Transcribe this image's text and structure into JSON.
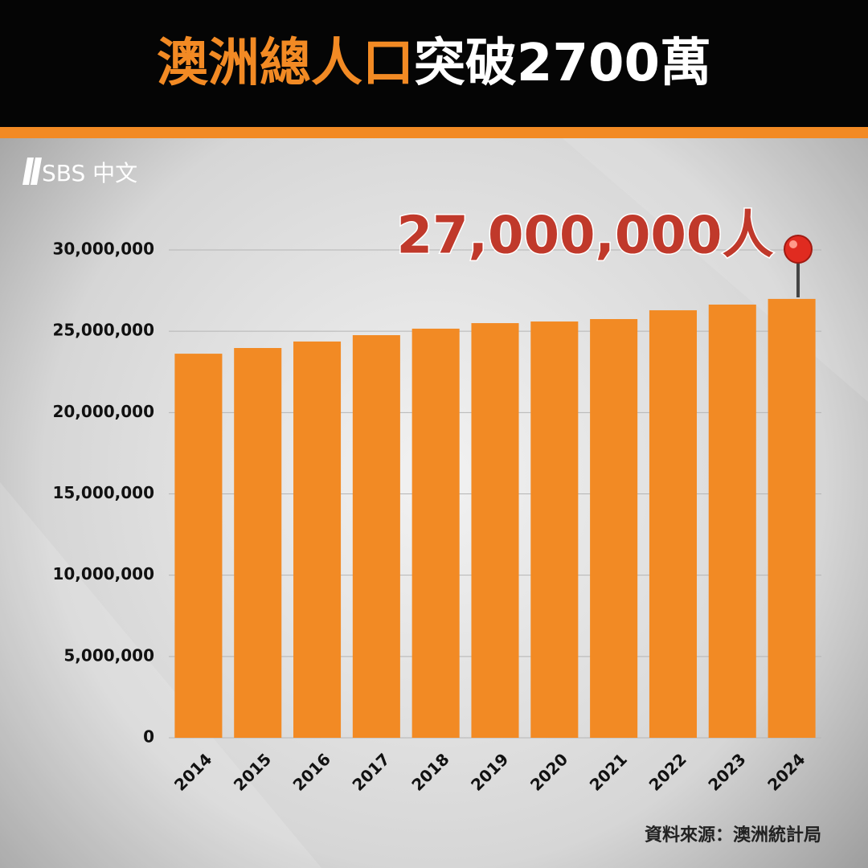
{
  "logo": "SBS 中文",
  "chart_data": {
    "type": "bar",
    "title": [
      "澳洲總人口",
      "突破2700萬"
    ],
    "annotation": "27,000,000人",
    "source": "資料來源：澳洲統計局",
    "categories": [
      "2014",
      "2015",
      "2016",
      "2017",
      "2018",
      "2019",
      "2020",
      "2021",
      "2022",
      "2023",
      "2024"
    ],
    "values": [
      23620000,
      23970000,
      24370000,
      24760000,
      25160000,
      25500000,
      25600000,
      25750000,
      26290000,
      26640000,
      26990000
    ],
    "color": "#f28a24",
    "ylim": [
      0,
      30000000
    ],
    "yticks": [
      0,
      {
        "value": 5000000,
        "label": "5,000,000"
      },
      {
        "value": 10000000,
        "label": "10,000,000"
      },
      {
        "value": 15000000,
        "label": "15,000,000"
      },
      {
        "value": 20000000,
        "label": "20,000,000"
      },
      {
        "value": 25000000,
        "label": "25,000,000"
      },
      {
        "value": 30000000,
        "label": "30,000,000"
      }
    ],
    "grid": true
  }
}
